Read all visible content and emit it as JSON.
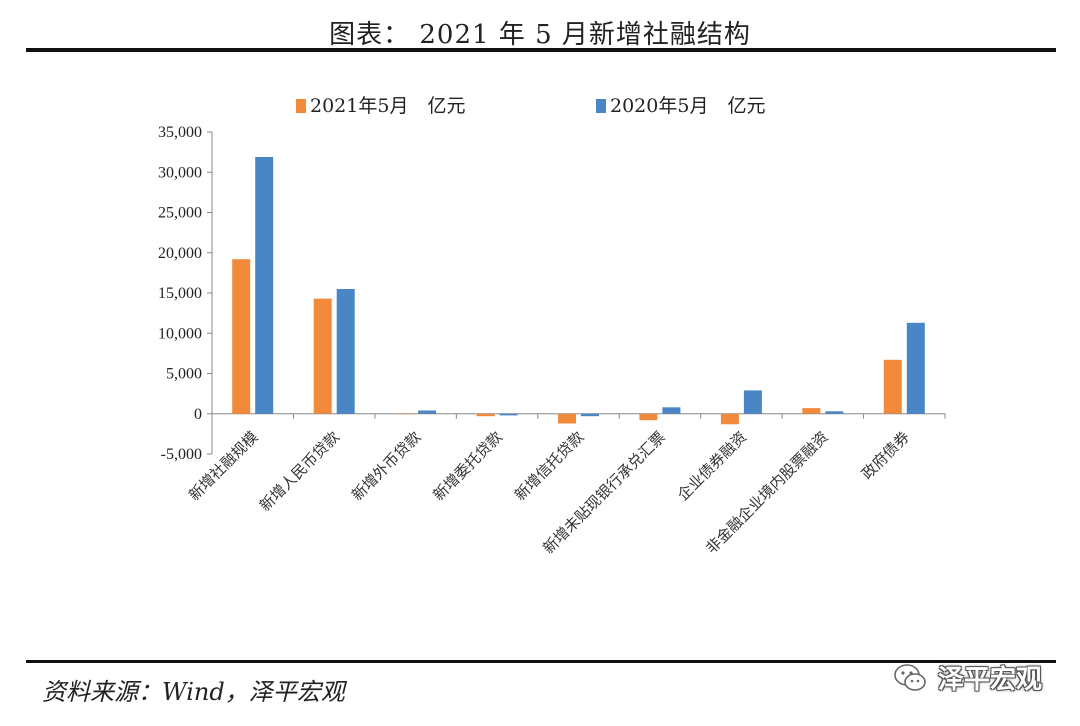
{
  "title": "图表：  2021 年 5 月新增社融结构",
  "source": "资料来源：Wind，泽平宏观",
  "watermark": "泽平宏观",
  "watermark_icon": "wechat-icon",
  "colors": {
    "series_2021": "#F28A3C",
    "series_2020": "#4A86C5"
  },
  "chart_data": {
    "type": "bar",
    "categories": [
      "新增社融规模",
      "新增人民币贷款",
      "新增外币贷款",
      "新增委托贷款",
      "新增信托贷款",
      "新增未贴现银行承兑汇票",
      "企业债券融资",
      "非金融企业境内股票融资",
      "政府债券"
    ],
    "series": [
      {
        "name": "2021年5月　亿元",
        "values": [
          19200,
          14300,
          0,
          -300,
          -1200,
          -800,
          -1300,
          700,
          6700
        ]
      },
      {
        "name": "2020年5月　亿元",
        "values": [
          31900,
          15500,
          400,
          -200,
          -300,
          800,
          2900,
          300,
          11300
        ]
      }
    ],
    "ylim": [
      -5000,
      35000
    ],
    "yticks": [
      "35,000",
      "30,000",
      "25,000",
      "20,000",
      "15,000",
      "10,000",
      "5,000",
      "0",
      "-5,000"
    ],
    "ytick_values": [
      35000,
      30000,
      25000,
      20000,
      15000,
      10000,
      5000,
      0,
      -5000
    ],
    "legend": "top"
  }
}
